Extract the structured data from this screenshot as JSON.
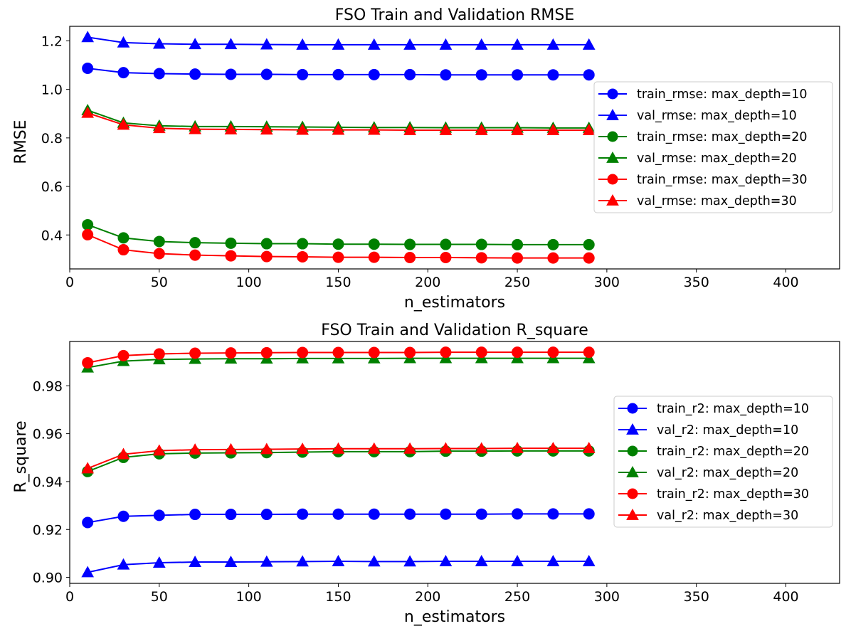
{
  "chart_data": [
    {
      "type": "line",
      "title": "FSO Train and Validation RMSE",
      "xlabel": "n_estimators",
      "ylabel": "RMSE",
      "xlim": [
        0,
        430
      ],
      "ylim": [
        0.26,
        1.26
      ],
      "xticks": [
        0,
        50,
        100,
        150,
        200,
        250,
        300,
        350,
        400
      ],
      "yticks": [
        0.4,
        0.6,
        0.8,
        1.0,
        1.2
      ],
      "ytick_labels": [
        "0.4",
        "0.6",
        "0.8",
        "1.0",
        "1.2"
      ],
      "grid": false,
      "legend_position": "center-right",
      "x": [
        10,
        30,
        50,
        70,
        90,
        110,
        130,
        150,
        170,
        190,
        210,
        230,
        250,
        270,
        290
      ],
      "series": [
        {
          "name": "train_rmse: max_depth=10",
          "color": "#0000ff",
          "marker": "circle",
          "values": [
            1.087,
            1.069,
            1.065,
            1.063,
            1.062,
            1.062,
            1.061,
            1.061,
            1.061,
            1.061,
            1.06,
            1.06,
            1.06,
            1.06,
            1.06
          ]
        },
        {
          "name": "val_rmse: max_depth=10",
          "color": "#0000ff",
          "marker": "triangle",
          "values": [
            1.215,
            1.193,
            1.188,
            1.186,
            1.186,
            1.185,
            1.184,
            1.184,
            1.184,
            1.184,
            1.184,
            1.184,
            1.184,
            1.184,
            1.184
          ]
        },
        {
          "name": "train_rmse: max_depth=20",
          "color": "#008000",
          "marker": "circle",
          "values": [
            0.442,
            0.388,
            0.373,
            0.368,
            0.366,
            0.364,
            0.364,
            0.362,
            0.362,
            0.361,
            0.361,
            0.361,
            0.36,
            0.36,
            0.36
          ]
        },
        {
          "name": "val_rmse: max_depth=20",
          "color": "#008000",
          "marker": "triangle",
          "values": [
            0.914,
            0.862,
            0.85,
            0.847,
            0.847,
            0.846,
            0.845,
            0.844,
            0.843,
            0.843,
            0.842,
            0.842,
            0.842,
            0.841,
            0.841
          ]
        },
        {
          "name": "train_rmse: max_depth=30",
          "color": "#ff0000",
          "marker": "circle",
          "values": [
            0.401,
            0.339,
            0.323,
            0.317,
            0.314,
            0.311,
            0.31,
            0.308,
            0.308,
            0.307,
            0.307,
            0.306,
            0.305,
            0.305,
            0.305
          ]
        },
        {
          "name": "val_rmse: max_depth=30",
          "color": "#ff0000",
          "marker": "triangle",
          "values": [
            0.903,
            0.854,
            0.84,
            0.836,
            0.835,
            0.834,
            0.833,
            0.833,
            0.833,
            0.832,
            0.832,
            0.832,
            0.832,
            0.832,
            0.832
          ]
        }
      ]
    },
    {
      "type": "line",
      "title": "FSO Train and Validation R_square",
      "xlabel": "n_estimators",
      "ylabel": "R_square",
      "xlim": [
        0,
        430
      ],
      "ylim": [
        0.8975,
        0.9985
      ],
      "xticks": [
        0,
        50,
        100,
        150,
        200,
        250,
        300,
        350,
        400
      ],
      "yticks": [
        0.9,
        0.92,
        0.94,
        0.96,
        0.98
      ],
      "ytick_labels": [
        "0.90",
        "0.92",
        "0.94",
        "0.96",
        "0.98"
      ],
      "grid": false,
      "legend_position": "center-right",
      "x": [
        10,
        30,
        50,
        70,
        90,
        110,
        130,
        150,
        170,
        190,
        210,
        230,
        250,
        270,
        290
      ],
      "series": [
        {
          "name": "train_r2: max_depth=10",
          "color": "#0000ff",
          "marker": "circle",
          "values": [
            0.9229,
            0.9255,
            0.9259,
            0.9263,
            0.9263,
            0.9263,
            0.9264,
            0.9264,
            0.9264,
            0.9264,
            0.9264,
            0.9264,
            0.9265,
            0.9265,
            0.9265
          ]
        },
        {
          "name": "val_r2: max_depth=10",
          "color": "#0000ff",
          "marker": "triangle",
          "values": [
            0.9021,
            0.9053,
            0.9061,
            0.9064,
            0.9064,
            0.9065,
            0.9066,
            0.9067,
            0.9066,
            0.9066,
            0.9067,
            0.9067,
            0.9067,
            0.9067,
            0.9067
          ]
        },
        {
          "name": "train_r2: max_depth=20",
          "color": "#008000",
          "marker": "circle",
          "values": [
            0.9442,
            0.9501,
            0.9516,
            0.9519,
            0.952,
            0.9521,
            0.9523,
            0.9525,
            0.9525,
            0.9525,
            0.9527,
            0.9527,
            0.9528,
            0.9528,
            0.9528
          ]
        },
        {
          "name": "val_r2: max_depth=20",
          "color": "#008000",
          "marker": "triangle",
          "values": [
            0.9876,
            0.9903,
            0.991,
            0.9912,
            0.9913,
            0.9913,
            0.9914,
            0.9914,
            0.9914,
            0.9915,
            0.9915,
            0.9915,
            0.9915,
            0.9915,
            0.9915
          ]
        },
        {
          "name": "train_r2: max_depth=30",
          "color": "#ff0000",
          "marker": "circle",
          "values": [
            0.9896,
            0.9926,
            0.9933,
            0.9936,
            0.9937,
            0.9938,
            0.9939,
            0.9939,
            0.9939,
            0.9939,
            0.994,
            0.994,
            0.994,
            0.994,
            0.994
          ]
        },
        {
          "name": "val_r2: max_depth=30",
          "color": "#ff0000",
          "marker": "triangle",
          "values": [
            0.9455,
            0.9514,
            0.9529,
            0.9533,
            0.9534,
            0.9535,
            0.9536,
            0.9537,
            0.9537,
            0.9537,
            0.9538,
            0.9538,
            0.9539,
            0.9539,
            0.9539
          ]
        }
      ]
    }
  ]
}
